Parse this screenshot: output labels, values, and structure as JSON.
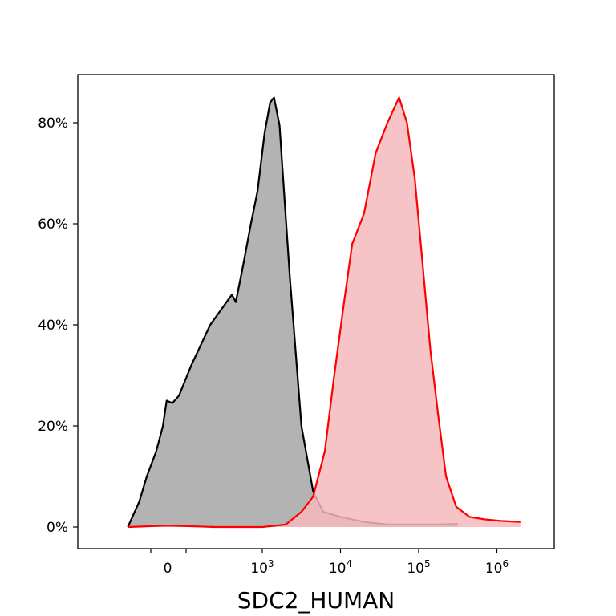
{
  "chart_data": {
    "type": "area",
    "title": "",
    "xlabel": "SDC2_HUMAN",
    "ylabel": "",
    "x_scale": "biexponential",
    "x_ticks": [
      {
        "value": 0,
        "label": "0"
      },
      {
        "value": 1000,
        "label": "10",
        "sup": "3"
      },
      {
        "value": 10000,
        "label": "10",
        "sup": "4"
      },
      {
        "value": 100000,
        "label": "10",
        "sup": "5"
      },
      {
        "value": 1000000,
        "label": "10",
        "sup": "6"
      }
    ],
    "y_ticks": [
      {
        "value": 0,
        "label": "0%"
      },
      {
        "value": 20,
        "label": "20%"
      },
      {
        "value": 40,
        "label": "40%"
      },
      {
        "value": 60,
        "label": "60%"
      },
      {
        "value": 80,
        "label": "80%"
      }
    ],
    "ylim": [
      -4.2,
      89
    ],
    "legend": "none",
    "grid": false,
    "series": [
      {
        "color": "#000000",
        "fill": "#b3b3b3",
        "points": [
          [
            -0.42,
            0
          ],
          [
            -0.3,
            5
          ],
          [
            -0.22,
            10
          ],
          [
            -0.12,
            15
          ],
          [
            -0.05,
            20
          ],
          [
            -0.01,
            25
          ],
          [
            0.05,
            24.5
          ],
          [
            0.12,
            26
          ],
          [
            0.25,
            32
          ],
          [
            0.45,
            40
          ],
          [
            0.68,
            46
          ],
          [
            0.72,
            44.5
          ],
          [
            0.8,
            52
          ],
          [
            0.88,
            60
          ],
          [
            0.95,
            66.5
          ],
          [
            1.03,
            78
          ],
          [
            1.1,
            84
          ],
          [
            1.15,
            85
          ],
          [
            1.22,
            79.5
          ],
          [
            1.35,
            50
          ],
          [
            1.5,
            20
          ],
          [
            1.65,
            7
          ],
          [
            1.78,
            3
          ],
          [
            2.0,
            2
          ],
          [
            2.3,
            1
          ],
          [
            2.6,
            0.5
          ],
          [
            2.9,
            0.5
          ],
          [
            3.2,
            0.5
          ],
          [
            3.5,
            0.6
          ]
        ]
      },
      {
        "color": "#ff0000",
        "fill": "#f5b9bd",
        "points": [
          [
            -0.42,
            0
          ],
          [
            0.0,
            0.3
          ],
          [
            0.5,
            0
          ],
          [
            1.0,
            0
          ],
          [
            1.3,
            0.5
          ],
          [
            1.5,
            3
          ],
          [
            1.65,
            6
          ],
          [
            1.8,
            15
          ],
          [
            1.92,
            30
          ],
          [
            2.05,
            45
          ],
          [
            2.15,
            56
          ],
          [
            2.3,
            62
          ],
          [
            2.45,
            74
          ],
          [
            2.6,
            80
          ],
          [
            2.75,
            85
          ],
          [
            2.85,
            80
          ],
          [
            2.95,
            69
          ],
          [
            3.05,
            52
          ],
          [
            3.15,
            35
          ],
          [
            3.25,
            22
          ],
          [
            3.35,
            10
          ],
          [
            3.48,
            4
          ],
          [
            3.65,
            2
          ],
          [
            3.85,
            1.5
          ],
          [
            4.05,
            1.2
          ],
          [
            4.3,
            1.0
          ]
        ]
      }
    ]
  }
}
